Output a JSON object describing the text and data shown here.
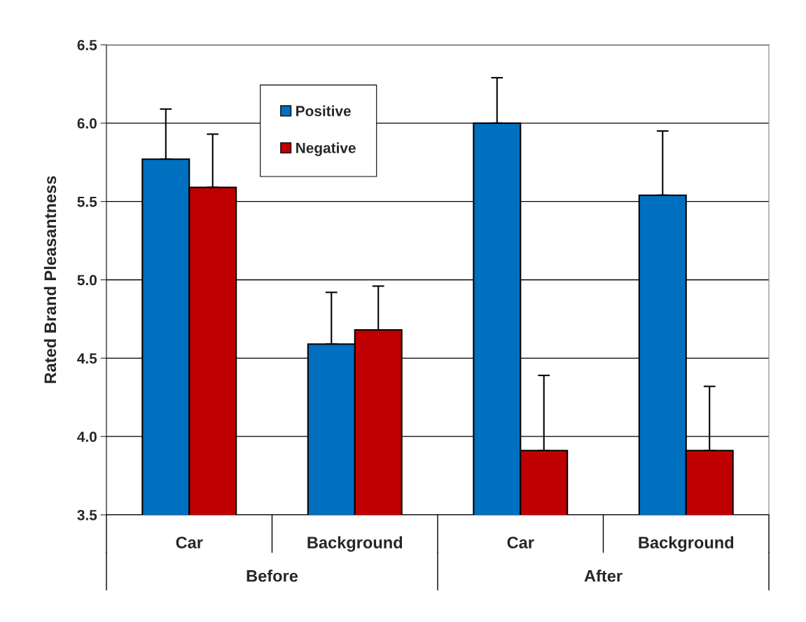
{
  "chart_data": {
    "type": "bar",
    "ylabel": "Rated Brand Pleasantness",
    "categories": [
      "Car",
      "Background",
      "Car",
      "Background"
    ],
    "series": [
      {
        "name": "Positive",
        "color": "#0070c0",
        "values": [
          5.77,
          4.59,
          6.0,
          5.54
        ],
        "errors": [
          [
            5.77,
            6.09
          ],
          [
            4.59,
            4.92
          ],
          [
            6.0,
            6.29
          ],
          [
            5.54,
            5.95
          ]
        ]
      },
      {
        "name": "Negative",
        "color": "#c00000",
        "values": [
          5.59,
          4.68,
          3.91,
          3.91
        ],
        "errors": [
          [
            5.59,
            5.93
          ],
          [
            4.68,
            4.96
          ],
          [
            3.91,
            4.39
          ],
          [
            3.91,
            4.32
          ]
        ]
      }
    ],
    "annotations": [
      "Before",
      "After"
    ],
    "ylim": [
      3.5,
      6.5
    ],
    "yticks": [
      3.5,
      {
        "value": 4.0,
        "label": "4.0"
      },
      4.5,
      {
        "value": 5.0,
        "label": "5.0"
      },
      5.5,
      {
        "value": 6.0,
        "label": "6.0"
      },
      6.5
    ],
    "grid": "y",
    "legend": "top"
  }
}
